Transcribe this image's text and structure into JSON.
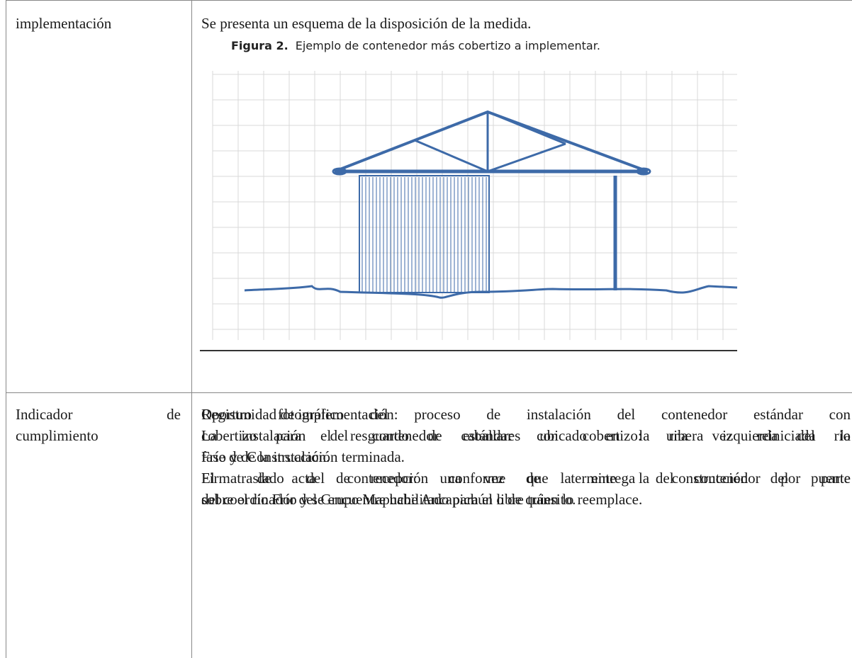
{
  "rows": [
    {
      "label_lines": [
        "implementación"
      ],
      "intro": "Se presenta un esquema de la disposición de la medida.",
      "figure": {
        "label": "Figura 2.",
        "caption": "Ejemplo de contenedor más cobertizo a implementar."
      },
      "lines": [
        "Oportunidad de implementación:",
        "La instalación del contenedor estándar con cobertizo: una vez reiniciada la",
        "fase de Construcción.",
        "El traslado del contenedor: una vez que termine la construcción del puente",
        "sobre el río Frío y se encuentre habilitado para el libre tránsito."
      ],
      "justified": [
        false,
        true,
        false,
        true,
        false
      ]
    },
    {
      "label_lines": [
        "Indicador de",
        "cumplimiento"
      ],
      "label_justified": [
        true,
        false
      ],
      "lines": [
        "Registro fotográfico del proceso de instalación del contenedor estándar con",
        "cobertizo para el resguardo de caballares ubicado en la ribera izquierda del río",
        "Frío y de la instalación terminada.",
        "Firma de acta de recepción conforme de la entrega del contenedor por parte",
        "del coordinador del Grupo Mapuche Ancapichún o de quien lo reemplace."
      ],
      "justified": [
        true,
        true,
        false,
        true,
        false
      ]
    }
  ]
}
